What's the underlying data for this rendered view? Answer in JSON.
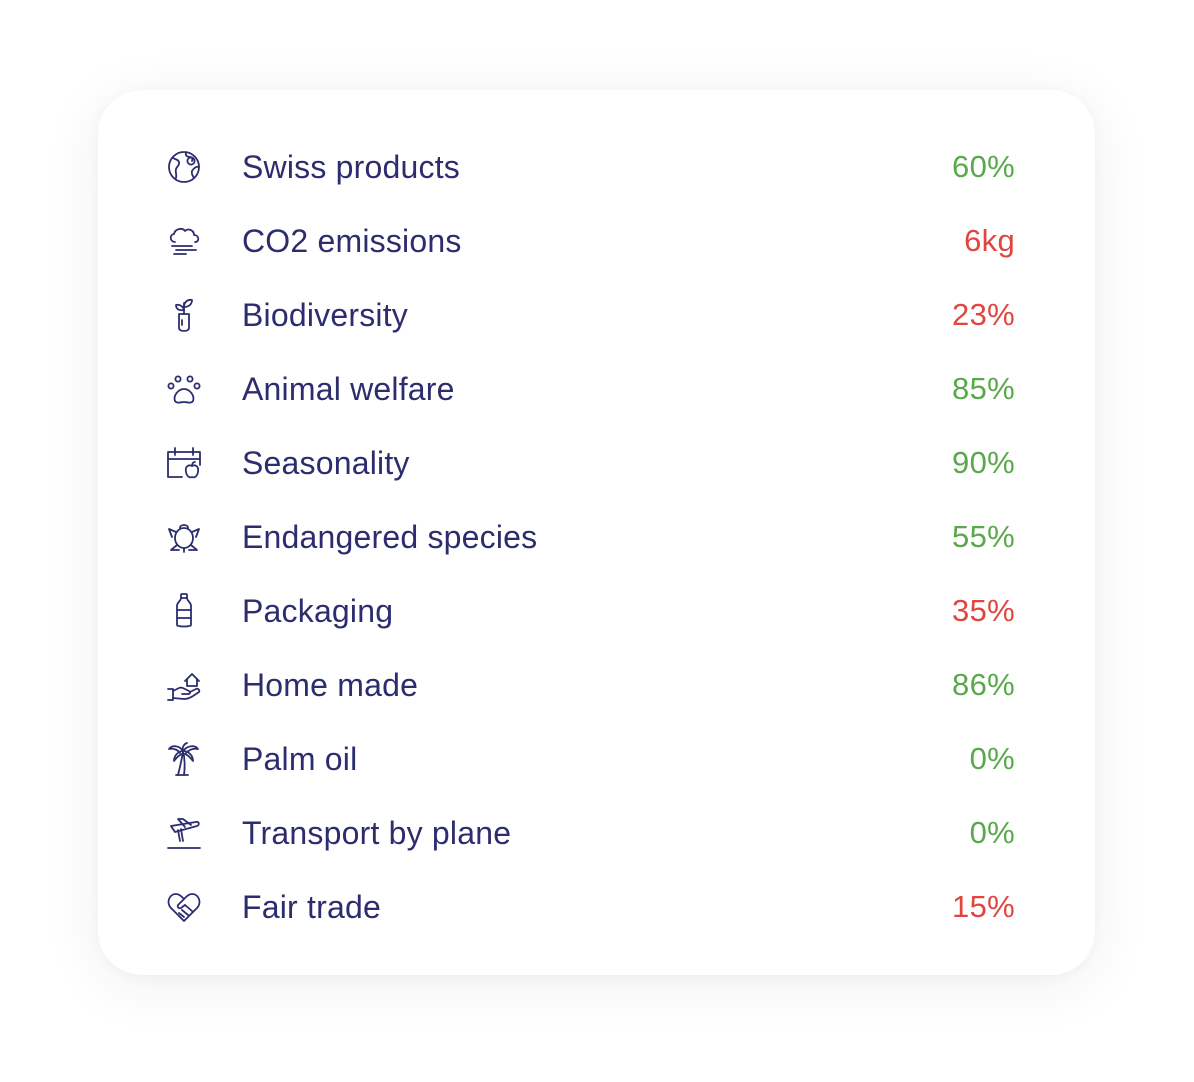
{
  "colors": {
    "text": "#2b2d6e",
    "good": "#5aa84c",
    "bad": "#e0453f"
  },
  "rows": [
    {
      "icon": "globe-icon",
      "label": "Swiss products",
      "value": "60%",
      "status": "good"
    },
    {
      "icon": "cloud-wind-icon",
      "label": "CO2 emissions",
      "value": "6kg",
      "status": "bad"
    },
    {
      "icon": "sprout-icon",
      "label": "Biodiversity",
      "value": "23%",
      "status": "bad"
    },
    {
      "icon": "paw-icon",
      "label": "Animal welfare",
      "value": "85%",
      "status": "good"
    },
    {
      "icon": "calendar-apple-icon",
      "label": "Seasonality",
      "value": "90%",
      "status": "good"
    },
    {
      "icon": "turtle-icon",
      "label": "Endangered species",
      "value": "55%",
      "status": "good"
    },
    {
      "icon": "bottle-icon",
      "label": "Packaging",
      "value": "35%",
      "status": "bad"
    },
    {
      "icon": "hand-house-icon",
      "label": "Home made",
      "value": "86%",
      "status": "good"
    },
    {
      "icon": "palm-tree-icon",
      "label": "Palm oil",
      "value": "0%",
      "status": "good"
    },
    {
      "icon": "plane-icon",
      "label": "Transport by plane",
      "value": "0%",
      "status": "good"
    },
    {
      "icon": "handshake-icon",
      "label": "Fair trade",
      "value": "15%",
      "status": "bad"
    }
  ]
}
